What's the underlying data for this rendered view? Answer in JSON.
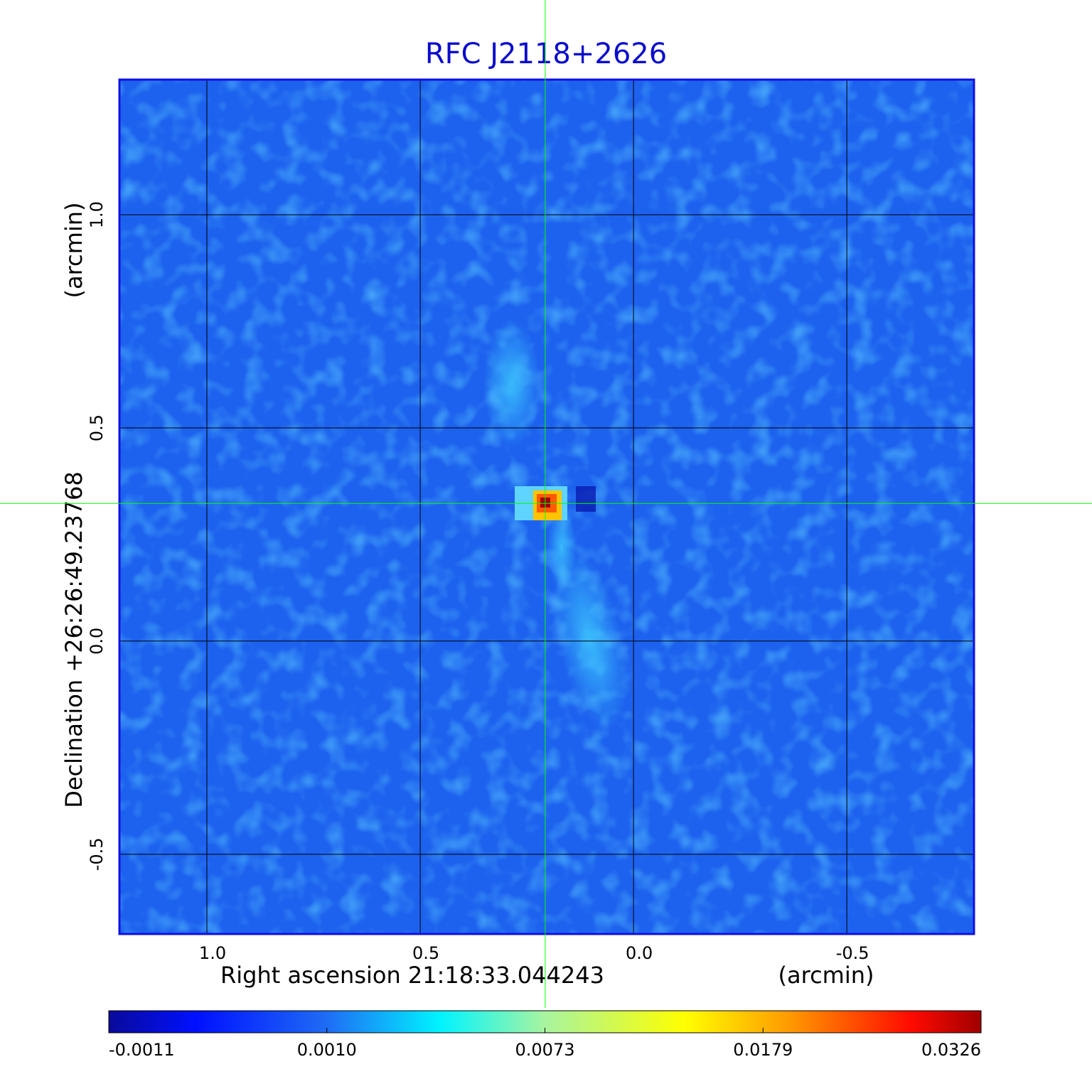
{
  "chart_data": {
    "type": "image",
    "title": "RFC J2118+2626",
    "x_label": "Right ascension  21:18:33.044243",
    "x_unit": "(arcmin)",
    "y_label": "Declination  +26:26:49.23768",
    "y_unit": "(arcmin)",
    "xlim": [
      1.205,
      -0.798
    ],
    "ylim": [
      -0.687,
      1.317
    ],
    "xticks": [
      {
        "value": 1,
        "label": "1.0"
      },
      {
        "value": 0.5,
        "label": "0.5"
      },
      {
        "value": 0,
        "label": "0.0"
      },
      {
        "value": -0.5,
        "label": "-0.5"
      }
    ],
    "yticks": [
      {
        "value": -0.5,
        "label": "-0.5"
      },
      {
        "value": 0,
        "label": "0.0"
      },
      {
        "value": 0.5,
        "label": "0.5"
      },
      {
        "value": 1,
        "label": "1.0"
      }
    ],
    "grid": true,
    "marker": {
      "x": 0.207,
      "y": 0.323,
      "color": "#00ff00"
    },
    "colorbar_ticks": [
      -0.0011,
      {
        "value": 0.001,
        "label": "0.0010"
      },
      0.0073,
      0.0179,
      0.0326
    ]
  }
}
